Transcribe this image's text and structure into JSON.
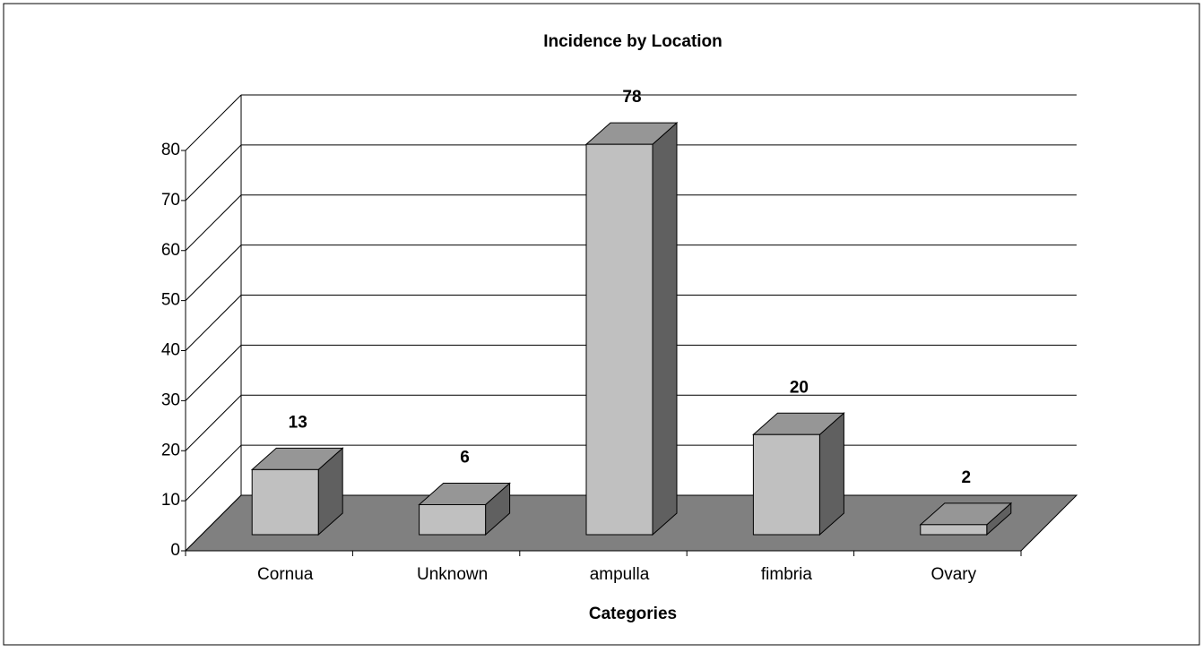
{
  "chart_data": {
    "type": "bar3d",
    "title": "Incidence by Location",
    "x_label": "Categories",
    "categories": [
      "Cornua",
      "Unknown",
      "ampulla",
      "fimbria",
      "Ovary"
    ],
    "values": [
      13,
      6,
      78,
      20,
      2
    ],
    "color": "#c0c0c0",
    "ylim": [
      0,
      80
    ],
    "yticks": [
      0,
      10,
      20,
      30,
      40,
      50,
      60,
      70,
      80
    ],
    "grid": true
  }
}
